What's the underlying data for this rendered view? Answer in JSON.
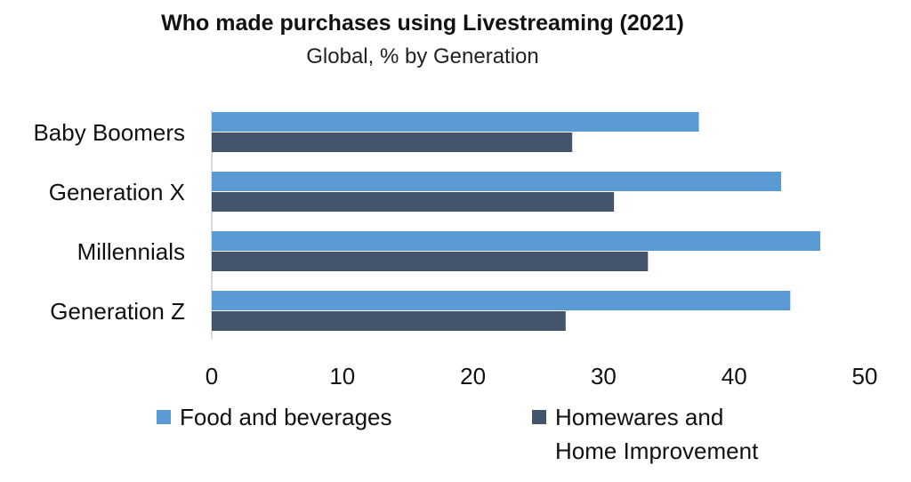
{
  "chart_data": {
    "type": "bar",
    "orientation": "horizontal",
    "title": "Who made purchases using Livestreaming (2021)",
    "subtitle": "Global, % by Generation",
    "categories": [
      "Baby Boomers",
      "Generation X",
      "Millennials",
      "Generation Z"
    ],
    "series": [
      {
        "name": "Food and beverages",
        "color": "#5b9bd5",
        "values": [
          37.3,
          43.6,
          46.6,
          44.3
        ]
      },
      {
        "name": "Homewares and Home Improvement",
        "name_lines": [
          "Homewares and",
          "Home Improvement"
        ],
        "color": "#44546a",
        "values": [
          27.6,
          30.8,
          33.4,
          27.1
        ]
      }
    ],
    "xlim": [
      0,
      50
    ],
    "xticks": [
      "0",
      "10",
      "20",
      "30",
      "40",
      "50"
    ],
    "xlabel": "",
    "ylabel": "",
    "grid": false,
    "legend": "bottom"
  }
}
